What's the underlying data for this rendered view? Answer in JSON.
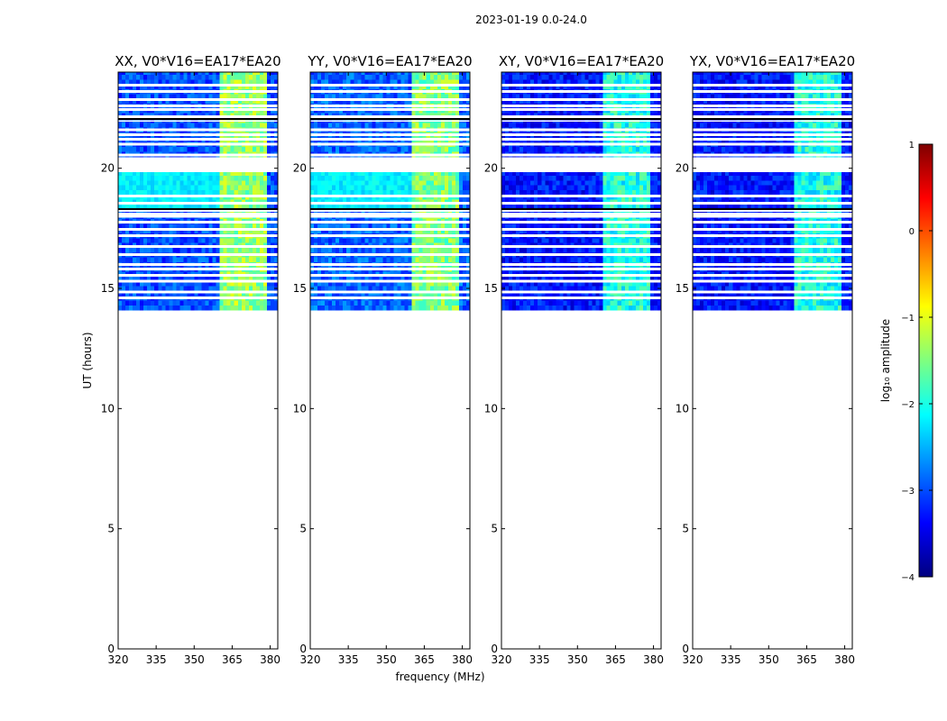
{
  "chart_data": {
    "type": "heatmap",
    "title": "2023-01-19 0.0-24.0",
    "xlabel": "frequency (MHz)",
    "ylabel": "UT (hours)",
    "xlim": [
      320,
      383
    ],
    "ylim": [
      0,
      24
    ],
    "xticks": [
      320,
      335,
      350,
      365,
      380
    ],
    "yticks": [
      0,
      5,
      10,
      15,
      20
    ],
    "data_start_hour": 14.1,
    "rfi_band_mhz": [
      360,
      379
    ],
    "panels": [
      {
        "title": "XX, V0*V16=EA17*EA20",
        "base_level": -3.0,
        "rfi_level": -1.4
      },
      {
        "title": "YY, V0*V16=EA17*EA20",
        "base_level": -2.9,
        "rfi_level": -1.5
      },
      {
        "title": "XY, V0*V16=EA17*EA20",
        "base_level": -3.3,
        "rfi_level": -2.0
      },
      {
        "title": "YX, V0*V16=EA17*EA20",
        "base_level": -3.3,
        "rfi_level": -2.0
      }
    ],
    "flagged_rows_hours": [
      23.45,
      23.2,
      22.85,
      22.6,
      22.45,
      22.15,
      21.6,
      21.4,
      21.2,
      21.0,
      20.55,
      18.85,
      18.55,
      18.25,
      18.0,
      17.75,
      17.45,
      17.2,
      16.75,
      16.4,
      16.0,
      15.8,
      15.55,
      15.3,
      14.85,
      14.6
    ],
    "colorbar": {
      "label": "log₁₀ amplitude",
      "range": [
        -4,
        1
      ],
      "ticks": [
        "1",
        "0",
        "−1",
        "−2",
        "−3",
        "−4"
      ],
      "colormap": [
        "#00007f",
        "#0000ff",
        "#007fff",
        "#00ffff",
        "#7fff7f",
        "#ffff00",
        "#ff7f00",
        "#ff0000",
        "#7f0000"
      ]
    }
  }
}
